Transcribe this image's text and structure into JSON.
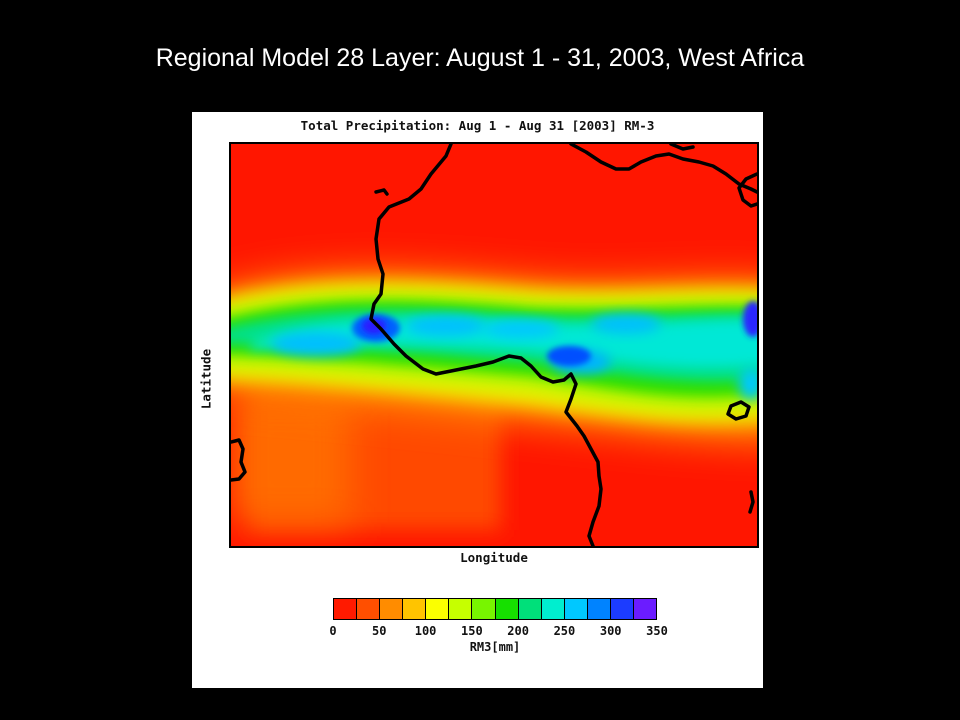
{
  "slide": {
    "title": "Regional Model 28 Layer: August 1 - 31, 2003, West Africa"
  },
  "map": {
    "title": "Total Precipitation: Aug 1 - Aug 31 [2003] RM-3",
    "xlabel": "Longitude",
    "ylabel": "Latitude",
    "region": "West Africa",
    "variable": "Total Precipitation"
  },
  "colorbar": {
    "label": "RM3[mm]",
    "ticks": [
      "0",
      "50",
      "100",
      "150",
      "200",
      "250",
      "300",
      "350"
    ],
    "min": 0,
    "max": 350,
    "step": 25,
    "colors": [
      "#ff1a00",
      "#ff4f00",
      "#ff8c00",
      "#ffc400",
      "#fbff00",
      "#c6ff00",
      "#78f500",
      "#16e000",
      "#00e07a",
      "#00eecf",
      "#00c8ff",
      "#0083ff",
      "#1c3cff",
      "#6b1cff"
    ]
  },
  "colors": {
    "background": "#000000",
    "panel": "#ffffff",
    "coastline": "#000000"
  }
}
